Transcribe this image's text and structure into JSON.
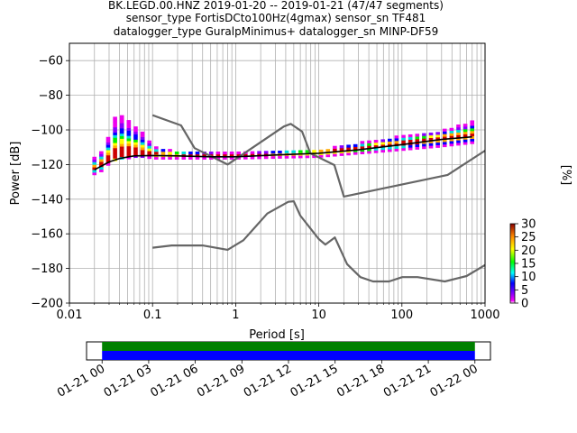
{
  "chart_data": [
    {
      "type": "heatmap",
      "title_lines": [
        "BK.LEGD.00.HNZ   2019-01-20 -- 2019-01-21  (47/47 segments)",
        "sensor_type FortisDCto100Hz(4gmax) sensor_sn TF481",
        "datalogger_type GuralpMinimus+ datalogger_sn MINP-DF59"
      ],
      "xlabel": "Period [s]",
      "ylabel": "Power [dB]",
      "xscale": "log",
      "xlim": [
        0.01,
        1000
      ],
      "ylim": [
        -200,
        -50
      ],
      "grid": true,
      "x_ticks": [
        {
          "value": 0.01,
          "label": "0.01"
        },
        {
          "value": 0.1,
          "label": "0.1"
        },
        {
          "value": 1,
          "label": "1"
        },
        {
          "value": 10,
          "label": "10"
        },
        {
          "value": 100,
          "label": "100"
        },
        {
          "value": 1000,
          "label": "1000"
        }
      ],
      "y_ticks": [
        {
          "value": -60,
          "label": "−60"
        },
        {
          "value": -80,
          "label": "−80"
        },
        {
          "value": -100,
          "label": "−100"
        },
        {
          "value": -120,
          "label": "−120"
        },
        {
          "value": -140,
          "label": "−140"
        },
        {
          "value": -160,
          "label": "−160"
        },
        {
          "value": -180,
          "label": "−180"
        },
        {
          "value": -200,
          "label": "−200"
        }
      ],
      "colorbar": {
        "label": "[%]",
        "range": [
          0,
          30
        ],
        "ticks": [
          {
            "value": 0,
            "label": "0"
          },
          {
            "value": 5,
            "label": "5"
          },
          {
            "value": 10,
            "label": "10"
          },
          {
            "value": 15,
            "label": "15"
          },
          {
            "value": 20,
            "label": "20"
          },
          {
            "value": 25,
            "label": "25"
          },
          {
            "value": 30,
            "label": "30"
          }
        ]
      },
      "series": [
        {
          "role": "noise-model-upper",
          "color": "#666666",
          "points": [
            [
              0.1,
              -91.5
            ],
            [
              0.22,
              -97.4
            ],
            [
              0.32,
              -110.5
            ],
            [
              0.8,
              -120.0
            ],
            [
              3.8,
              -98.0
            ],
            [
              4.6,
              -96.5
            ],
            [
              6.3,
              -101.0
            ],
            [
              7.9,
              -113.5
            ],
            [
              15.4,
              -120.3
            ],
            [
              20,
              -138.5
            ],
            [
              354.8,
              -126.0
            ],
            [
              1000,
              -112.0
            ]
          ]
        },
        {
          "role": "noise-model-lower",
          "color": "#666666",
          "points": [
            [
              0.1,
              -168.0
            ],
            [
              0.17,
              -166.7
            ],
            [
              0.4,
              -166.7
            ],
            [
              0.8,
              -169.2
            ],
            [
              1.24,
              -163.7
            ],
            [
              2.4,
              -148.3
            ],
            [
              4.3,
              -141.5
            ],
            [
              5,
              -141.2
            ],
            [
              6,
              -149.5
            ],
            [
              10,
              -163.0
            ],
            [
              12,
              -166.2
            ],
            [
              15.6,
              -162.1
            ],
            [
              21.9,
              -177.5
            ],
            [
              31.6,
              -185.0
            ],
            [
              45,
              -187.5
            ],
            [
              70,
              -187.5
            ],
            [
              101,
              -185.0
            ],
            [
              154,
              -185.0
            ],
            [
              328,
              -187.5
            ],
            [
              600,
              -184.4
            ],
            [
              1000,
              -178.0
            ]
          ]
        },
        {
          "role": "mode-curve",
          "color": "#000000",
          "points": [
            [
              0.02,
              -123.0
            ],
            [
              0.025,
              -120.5
            ],
            [
              0.03,
              -118.5
            ],
            [
              0.04,
              -116.5
            ],
            [
              0.06,
              -115.0
            ],
            [
              0.1,
              -114.8
            ],
            [
              0.2,
              -115.0
            ],
            [
              0.5,
              -115.5
            ],
            [
              1,
              -115.5
            ],
            [
              3,
              -114.5
            ],
            [
              10,
              -113.5
            ],
            [
              30,
              -111.5
            ],
            [
              100,
              -108.5
            ],
            [
              300,
              -105.5
            ],
            [
              700,
              -104.0
            ]
          ]
        }
      ],
      "spread": [
        [
          0.02,
          -126,
          -117
        ],
        [
          0.025,
          -124,
          -112
        ],
        [
          0.03,
          -120,
          -103
        ],
        [
          0.035,
          -118,
          -94
        ],
        [
          0.04,
          -117,
          -92
        ],
        [
          0.05,
          -117,
          -94
        ],
        [
          0.06,
          -116,
          -98
        ],
        [
          0.08,
          -116,
          -103
        ],
        [
          0.1,
          -117,
          -110
        ],
        [
          0.2,
          -117,
          -113
        ],
        [
          1,
          -117,
          -114
        ],
        [
          10,
          -116,
          -112
        ],
        [
          100,
          -112,
          -104
        ],
        [
          300,
          -110,
          -101
        ],
        [
          700,
          -108,
          -96
        ]
      ]
    },
    {
      "type": "timeline",
      "xlim": [
        "2019-01-20T23:00",
        "2019-01-22T01:00"
      ],
      "x_ticks": [
        "01-21 00",
        "01-21 03",
        "01-21 06",
        "01-21 09",
        "01-21 12",
        "01-21 15",
        "01-21 18",
        "01-21 21",
        "01-22 00"
      ],
      "bars": [
        {
          "color": "#008000",
          "start": "2019-01-21T00:00",
          "end": "2019-01-22T00:00"
        },
        {
          "color": "#0000ff",
          "start": "2019-01-21T00:00",
          "end": "2019-01-22T00:00"
        }
      ]
    }
  ]
}
